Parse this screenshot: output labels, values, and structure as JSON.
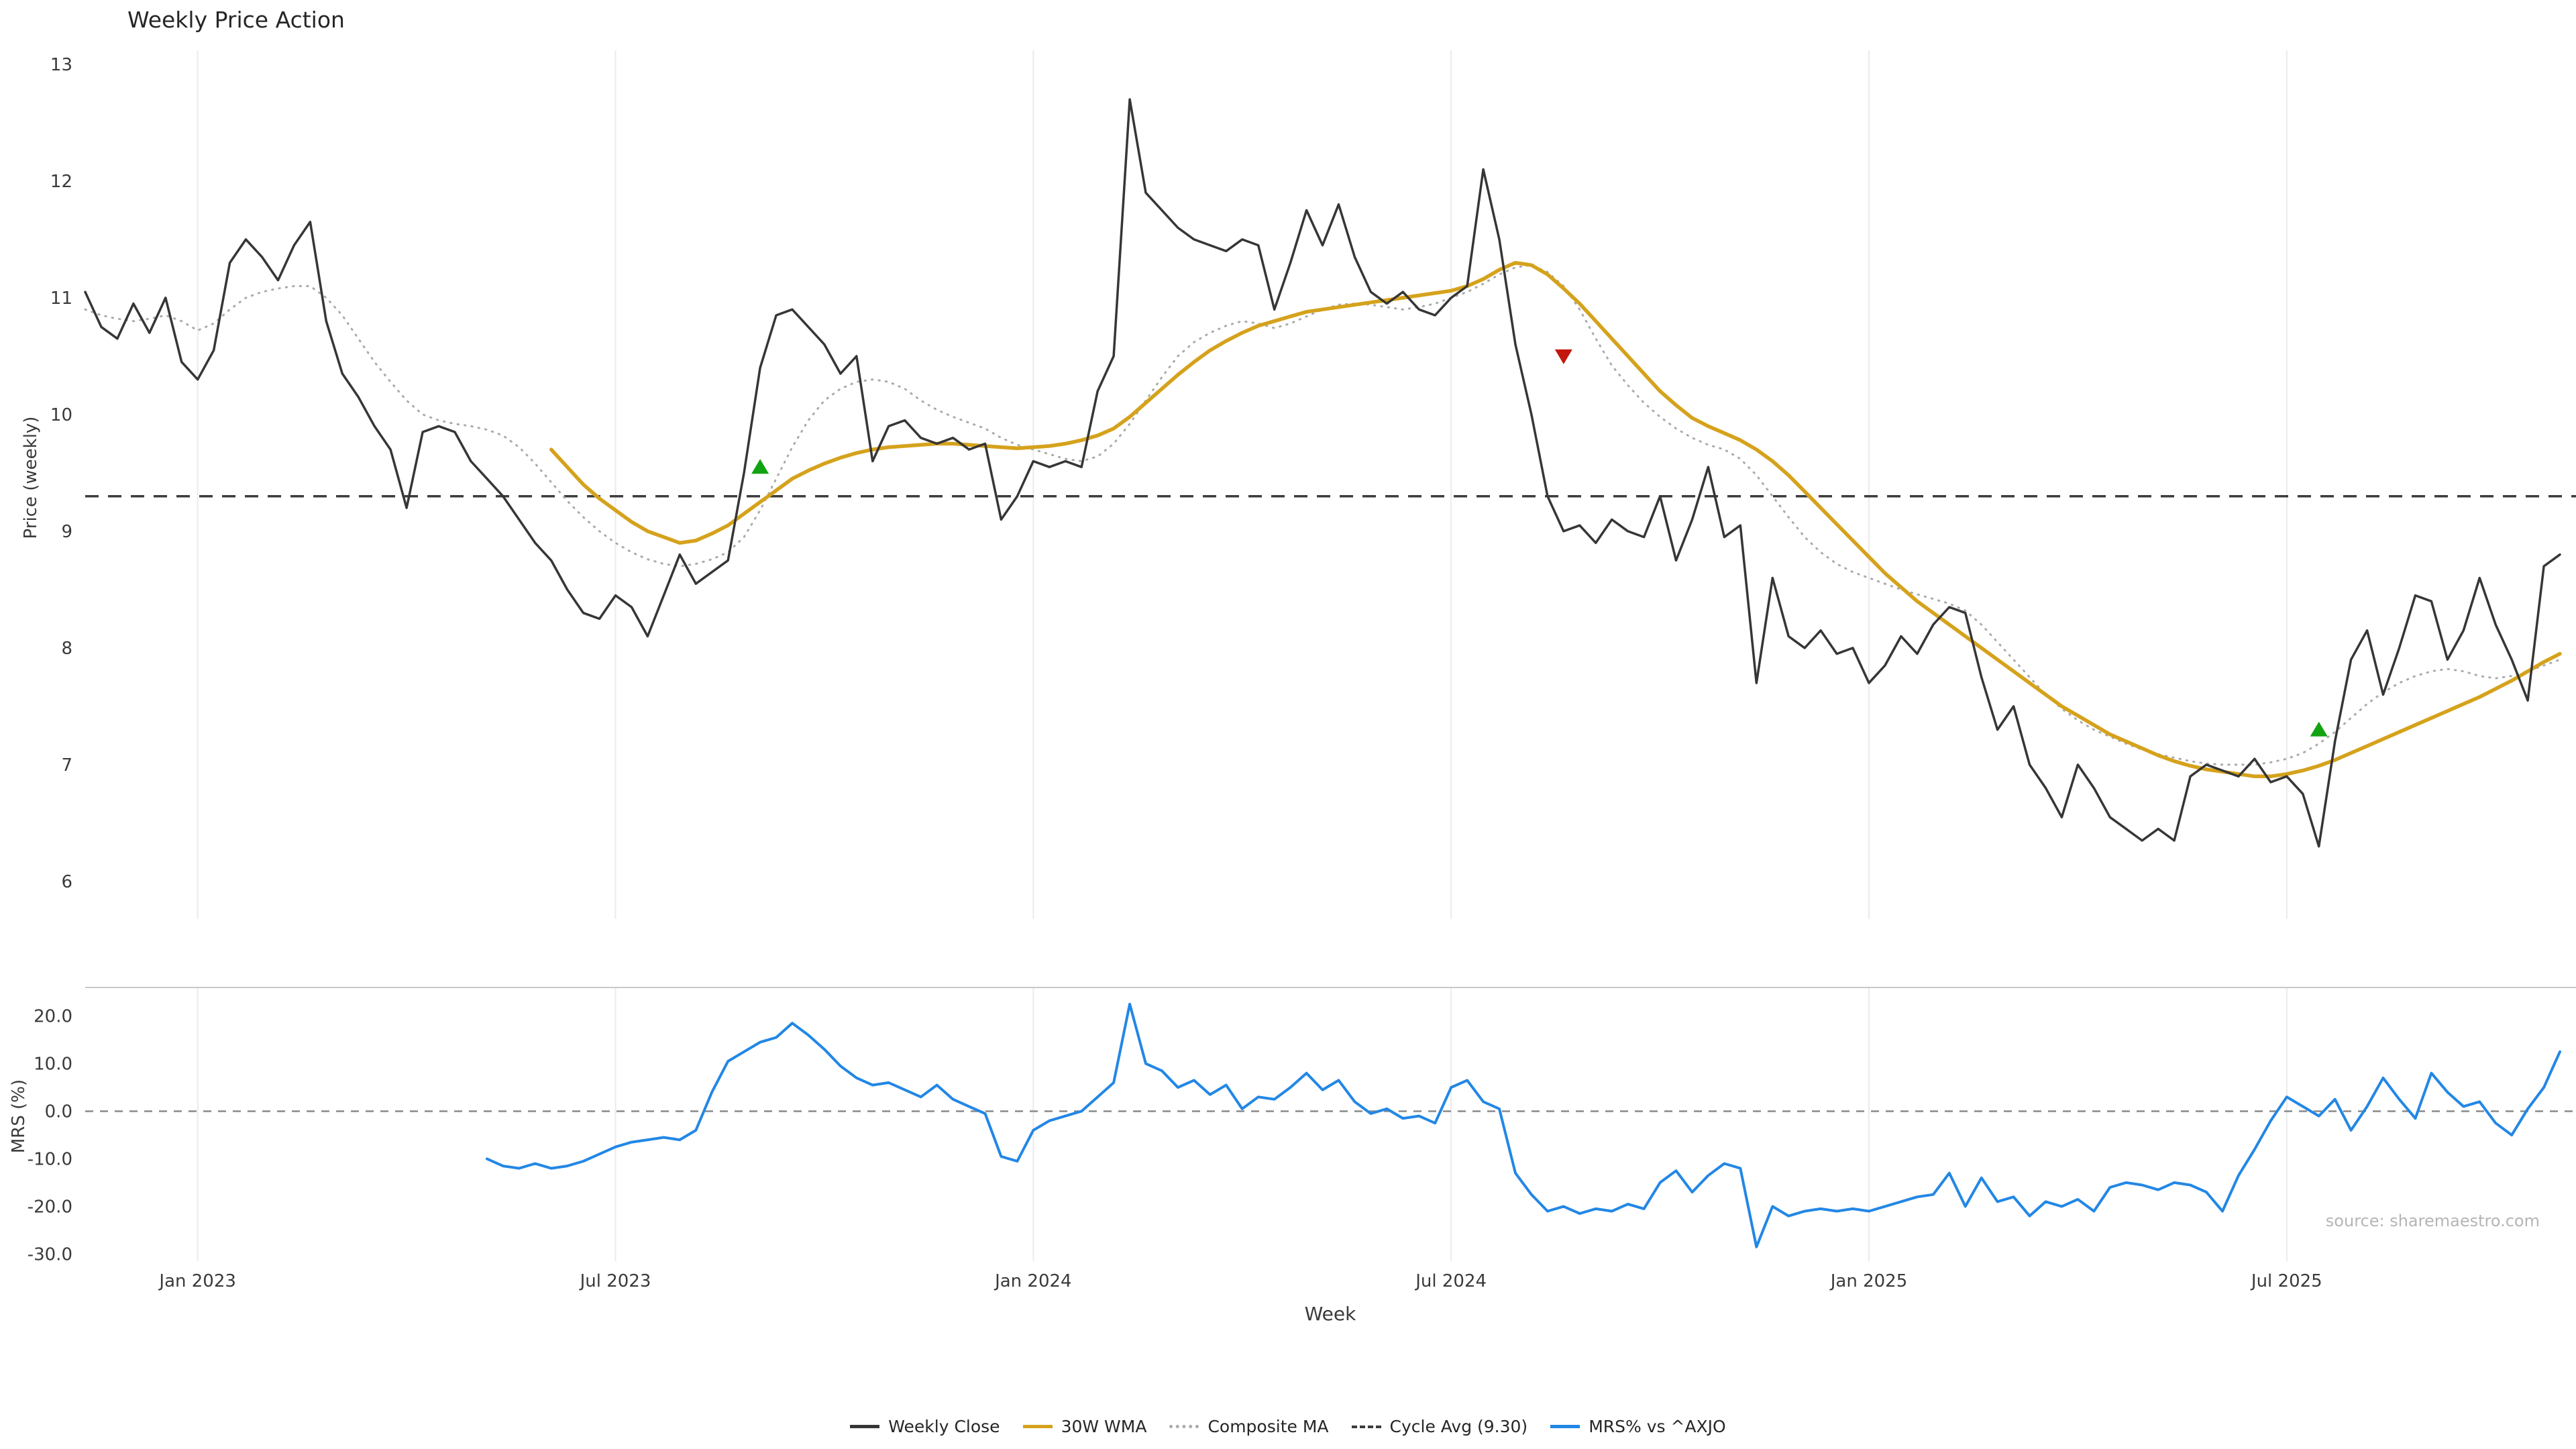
{
  "title": "Weekly Price Action",
  "xlabel": "Week",
  "source": "source: sharemaestro.com",
  "colors": {
    "weekly_close": "#363636",
    "wma": "#D5A21C",
    "composite": "#ABABAB",
    "cycle_avg": "#3C3C3C",
    "mrs": "#2287E5",
    "buy_marker": "#12A312",
    "sell_marker": "#C3170D",
    "gridline": "#EBEBEB"
  },
  "legend": {
    "items": [
      {
        "label": "Weekly Close",
        "color": "#363636",
        "style": "solid"
      },
      {
        "label": "30W WMA",
        "color": "#D5A21C",
        "style": "solid"
      },
      {
        "label": "Composite MA",
        "color": "#ABABAB",
        "style": "dotted"
      },
      {
        "label": "Cycle Avg (9.30)",
        "color": "#3C3C3C",
        "style": "dashed"
      },
      {
        "label": "MRS% vs ^AXJO",
        "color": "#2287E5",
        "style": "solid"
      }
    ]
  },
  "chart_data": [
    {
      "type": "line",
      "panel": "price",
      "title": "Weekly Price Action",
      "ylabel": "Price (weekly)",
      "yticks": [
        13,
        12,
        11,
        10,
        9,
        8,
        7,
        6
      ],
      "ylim": [
        5.85,
        13.12
      ],
      "xlim_weeks": [
        0,
        155
      ],
      "xticks": [
        {
          "week": 7,
          "label": "Jan 2023"
        },
        {
          "week": 33,
          "label": "Jul 2023"
        },
        {
          "week": 59,
          "label": "Jan 2024"
        },
        {
          "week": 85,
          "label": "Jul 2024"
        },
        {
          "week": 111,
          "label": "Jan 2025"
        },
        {
          "week": 137,
          "label": "Jul 2025"
        }
      ],
      "cycle_avg": 9.3,
      "series": [
        {
          "name": "Weekly Close",
          "color": "#363636",
          "style": "solid",
          "start_week": 0,
          "values": [
            11.05,
            10.75,
            10.65,
            10.95,
            10.7,
            11.0,
            10.45,
            10.3,
            10.55,
            11.3,
            11.5,
            11.35,
            11.15,
            11.45,
            11.65,
            10.8,
            10.35,
            10.15,
            9.9,
            9.7,
            9.2,
            9.85,
            9.9,
            9.85,
            9.6,
            9.45,
            9.3,
            9.1,
            8.9,
            8.75,
            8.5,
            8.3,
            8.25,
            8.45,
            8.35,
            8.1,
            8.45,
            8.8,
            8.55,
            8.65,
            8.75,
            9.5,
            10.4,
            10.85,
            10.9,
            10.75,
            10.6,
            10.35,
            10.5,
            9.6,
            9.9,
            9.95,
            9.8,
            9.75,
            9.8,
            9.7,
            9.75,
            9.1,
            9.3,
            9.6,
            9.55,
            9.6,
            9.55,
            10.2,
            10.5,
            12.7,
            11.9,
            11.75,
            11.6,
            11.5,
            11.45,
            11.4,
            11.5,
            11.45,
            10.9,
            11.3,
            11.75,
            11.45,
            11.8,
            11.35,
            11.05,
            10.95,
            11.05,
            10.9,
            10.85,
            11.0,
            11.1,
            12.1,
            11.5,
            10.6,
            10.0,
            9.3,
            9.0,
            9.05,
            8.9,
            9.1,
            9.0,
            8.95,
            9.3,
            8.75,
            9.1,
            9.55,
            8.95,
            9.05,
            7.7,
            8.6,
            8.1,
            8.0,
            8.15,
            7.95,
            8.0,
            7.7,
            7.85,
            8.1,
            7.95,
            8.2,
            8.35,
            8.3,
            7.75,
            7.3,
            7.5,
            7.0,
            6.8,
            6.55,
            7.0,
            6.8,
            6.55,
            6.45,
            6.35,
            6.45,
            6.35,
            6.9,
            7.0,
            6.95,
            6.9,
            7.05,
            6.85,
            6.9,
            6.75,
            6.3,
            7.2,
            7.9,
            8.15,
            7.6,
            8.0,
            8.45,
            8.4,
            7.9,
            8.15,
            8.6,
            8.2,
            7.9,
            7.55,
            8.7,
            8.8
          ]
        },
        {
          "name": "30W WMA",
          "color": "#D5A21C",
          "style": "solid",
          "start_week": 29,
          "values": [
            9.7,
            9.55,
            9.4,
            9.28,
            9.18,
            9.08,
            9.0,
            8.95,
            8.9,
            8.92,
            8.98,
            9.05,
            9.15,
            9.25,
            9.35,
            9.45,
            9.52,
            9.58,
            9.63,
            9.67,
            9.7,
            9.72,
            9.73,
            9.74,
            9.75,
            9.75,
            9.74,
            9.73,
            9.72,
            9.71,
            9.72,
            9.73,
            9.75,
            9.78,
            9.82,
            9.88,
            9.98,
            10.1,
            10.22,
            10.34,
            10.45,
            10.55,
            10.63,
            10.7,
            10.76,
            10.8,
            10.84,
            10.88,
            10.9,
            10.92,
            10.94,
            10.96,
            10.98,
            11.0,
            11.02,
            11.04,
            11.06,
            11.1,
            11.16,
            11.24,
            11.3,
            11.28,
            11.2,
            11.08,
            10.95,
            10.8,
            10.65,
            10.5,
            10.35,
            10.2,
            10.08,
            9.97,
            9.9,
            9.84,
            9.78,
            9.7,
            9.6,
            9.48,
            9.34,
            9.2,
            9.06,
            8.92,
            8.78,
            8.64,
            8.52,
            8.4,
            8.3,
            8.2,
            8.1,
            8.0,
            7.9,
            7.8,
            7.7,
            7.6,
            7.5,
            7.42,
            7.34,
            7.26,
            7.2,
            7.14,
            7.08,
            7.03,
            6.99,
            6.96,
            6.94,
            6.92,
            6.9,
            6.9,
            6.92,
            6.95,
            6.99,
            7.04,
            7.1,
            7.16,
            7.22,
            7.28,
            7.34,
            7.4,
            7.46,
            7.52,
            7.58,
            7.65,
            7.72,
            7.8,
            7.88,
            7.95
          ]
        },
        {
          "name": "Composite MA",
          "color": "#ABABAB",
          "style": "dotted",
          "start_week": 0,
          "values": [
            10.9,
            10.85,
            10.82,
            10.8,
            10.82,
            10.85,
            10.8,
            10.72,
            10.78,
            10.9,
            11.0,
            11.05,
            11.08,
            11.1,
            11.1,
            11.0,
            10.85,
            10.65,
            10.45,
            10.28,
            10.12,
            10.0,
            9.95,
            9.92,
            9.9,
            9.87,
            9.82,
            9.72,
            9.58,
            9.42,
            9.26,
            9.12,
            9.0,
            8.9,
            8.82,
            8.76,
            8.72,
            8.7,
            8.72,
            8.76,
            8.82,
            8.95,
            9.18,
            9.45,
            9.72,
            9.95,
            10.12,
            10.22,
            10.28,
            10.3,
            10.28,
            10.22,
            10.12,
            10.04,
            9.98,
            9.93,
            9.88,
            9.8,
            9.74,
            9.7,
            9.66,
            9.62,
            9.6,
            9.64,
            9.75,
            9.92,
            10.12,
            10.32,
            10.5,
            10.62,
            10.7,
            10.76,
            10.8,
            10.78,
            10.74,
            10.78,
            10.84,
            10.9,
            10.94,
            10.95,
            10.94,
            10.92,
            10.9,
            10.92,
            10.95,
            11.0,
            11.05,
            11.12,
            11.2,
            11.26,
            11.28,
            11.22,
            11.1,
            10.9,
            10.65,
            10.42,
            10.25,
            10.1,
            9.98,
            9.88,
            9.8,
            9.74,
            9.7,
            9.62,
            9.48,
            9.3,
            9.12,
            8.95,
            8.82,
            8.72,
            8.65,
            8.6,
            8.55,
            8.5,
            8.46,
            8.42,
            8.38,
            8.32,
            8.2,
            8.05,
            7.9,
            7.75,
            7.6,
            7.48,
            7.38,
            7.3,
            7.24,
            7.18,
            7.13,
            7.09,
            7.06,
            7.03,
            7.01,
            7.0,
            7.0,
            7.0,
            7.02,
            7.05,
            7.1,
            7.18,
            7.28,
            7.4,
            7.52,
            7.62,
            7.7,
            7.76,
            7.8,
            7.82,
            7.8,
            7.76,
            7.74,
            7.76,
            7.8,
            7.85,
            7.9
          ]
        }
      ],
      "markers": [
        {
          "week": 42,
          "price": 9.55,
          "shape": "triangle-up",
          "color": "#12A312"
        },
        {
          "week": 92,
          "price": 10.5,
          "shape": "triangle-down",
          "color": "#C3170D"
        },
        {
          "week": 139,
          "price": 7.3,
          "shape": "triangle-up",
          "color": "#12A312"
        }
      ]
    },
    {
      "type": "line",
      "panel": "mrs",
      "ylabel": "MRS (%)",
      "yticks": [
        20,
        10,
        0,
        -10,
        -20,
        -30
      ],
      "ylim": [
        -31.5,
        26
      ],
      "zero_line": 0,
      "series": [
        {
          "name": "MRS% vs ^AXJO",
          "color": "#2287E5",
          "style": "solid",
          "start_week": 25,
          "values": [
            -10,
            -11.5,
            -12,
            -11,
            -12,
            -11.5,
            -10.5,
            -9,
            -7.5,
            -6.5,
            -6,
            -5.5,
            -6,
            -4,
            4,
            10.5,
            12.5,
            14.5,
            15.5,
            18.5,
            16,
            13,
            9.5,
            7,
            5.5,
            6,
            4.5,
            3,
            5.5,
            2.5,
            1,
            -0.5,
            -9.5,
            -10.5,
            -4,
            -2,
            -1,
            0,
            3,
            6,
            22.5,
            10,
            8.5,
            5,
            6.5,
            3.5,
            5.5,
            0.5,
            3,
            2.5,
            5,
            8,
            4.5,
            6.5,
            2,
            -0.5,
            0.5,
            -1.5,
            -1,
            -2.5,
            5,
            6.5,
            2,
            0.5,
            -13,
            -17.5,
            -21,
            -20,
            -21.5,
            -20.5,
            -21,
            -19.5,
            -20.5,
            -15,
            -12.5,
            -17,
            -13.5,
            -11,
            -12,
            -28.5,
            -20,
            -22,
            -21,
            -20.5,
            -21,
            -20.5,
            -21,
            -20,
            -19,
            -18,
            -17.5,
            -13,
            -20,
            -14,
            -19,
            -18,
            -22,
            -19,
            -20,
            -18.5,
            -21,
            -16,
            -15,
            -15.5,
            -16.5,
            -15,
            -15.5,
            -17,
            -21,
            -13.5,
            -8,
            -2,
            3,
            1,
            -1,
            2.5,
            -4,
            1,
            7,
            2.5,
            -1.5,
            8,
            4,
            1,
            2,
            -2.5,
            -5,
            0.5,
            5,
            12.5
          ]
        }
      ],
      "source_text": "source: sharemaestro.com"
    }
  ]
}
